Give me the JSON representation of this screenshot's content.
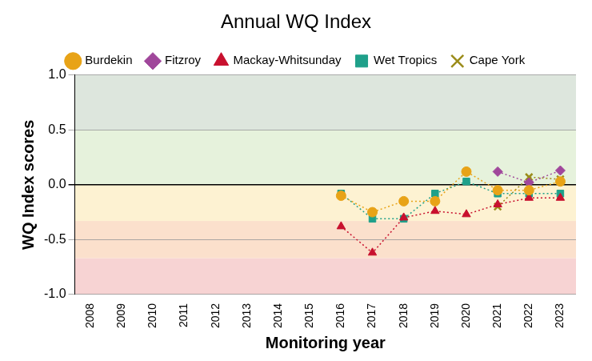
{
  "chart_data": {
    "type": "line",
    "title": "Annual WQ Index",
    "x_label": "Monitoring year",
    "y_label": "WQ Index scores",
    "categories": [
      "2008",
      "2009",
      "2010",
      "2011",
      "2012",
      "2013",
      "2014",
      "2015",
      "2016",
      "2017",
      "2018",
      "2019",
      "2020",
      "2021",
      "2022",
      "2023"
    ],
    "series": [
      {
        "name": "Burdekin",
        "color": "#e8a317",
        "marker": "circle",
        "line_style": "dotted",
        "values": [
          null,
          null,
          null,
          null,
          null,
          null,
          null,
          null,
          -0.1,
          -0.25,
          -0.15,
          -0.15,
          0.12,
          -0.05,
          -0.05,
          0.03
        ]
      },
      {
        "name": "Fitzroy",
        "color": "#a0479b",
        "marker": "diamond",
        "line_style": "dotted",
        "values": [
          null,
          null,
          null,
          null,
          null,
          null,
          null,
          null,
          null,
          null,
          null,
          null,
          null,
          0.12,
          0.02,
          0.13
        ]
      },
      {
        "name": "Mackay-Whitsunday",
        "color": "#c8102e",
        "marker": "triangle",
        "line_style": "dotted",
        "values": [
          null,
          null,
          null,
          null,
          null,
          null,
          null,
          null,
          -0.38,
          -0.62,
          -0.3,
          -0.24,
          -0.27,
          -0.18,
          -0.12,
          -0.12
        ]
      },
      {
        "name": "Wet Tropics",
        "color": "#1fa08a",
        "marker": "square",
        "line_style": "dotted",
        "values": [
          null,
          null,
          null,
          null,
          null,
          null,
          null,
          null,
          -0.08,
          -0.31,
          -0.31,
          -0.08,
          0.03,
          -0.08,
          -0.08,
          -0.08
        ]
      },
      {
        "name": "Cape York",
        "color": "#9b8c1a",
        "marker": "x",
        "line_style": "dotted",
        "values": [
          null,
          null,
          null,
          null,
          null,
          null,
          null,
          null,
          null,
          null,
          null,
          null,
          null,
          -0.2,
          0.07,
          0.05
        ]
      }
    ],
    "ylim": [
      -1,
      1
    ],
    "yticks": [
      {
        "value": -1,
        "label": "-1.0"
      },
      {
        "value": -0.5,
        "label": "-0.5"
      },
      {
        "value": 0,
        "label": "0.0"
      },
      {
        "value": 0.5,
        "label": "0.5"
      },
      {
        "value": 1,
        "label": "1.0"
      }
    ],
    "bands": [
      {
        "from": 0.5,
        "to": 1,
        "color": "#dde6dd"
      },
      {
        "from": 0,
        "to": 0.5,
        "color": "#e6f2dc"
      },
      {
        "from": -0.33,
        "to": 0,
        "color": "#fdf2d2"
      },
      {
        "from": -0.67,
        "to": -0.33,
        "color": "#fbe0cc"
      },
      {
        "from": -1,
        "to": -0.67,
        "color": "#f7d3d3"
      }
    ],
    "grid": true,
    "legend": "top"
  }
}
